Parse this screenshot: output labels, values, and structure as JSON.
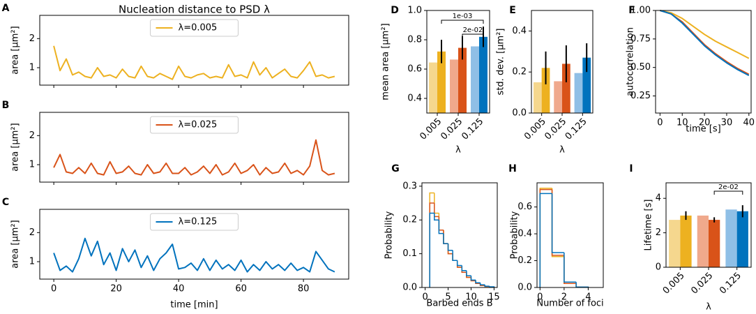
{
  "chart_data": [
    {
      "type": "line",
      "panel": "A",
      "title": "Nucleation distance to PSD λ",
      "ylabel": "area [μm²]",
      "legend": "upper center",
      "x": [
        0,
        2,
        4,
        6,
        8,
        10,
        12,
        14,
        16,
        18,
        20,
        22,
        24,
        26,
        28,
        30,
        32,
        34,
        36,
        38,
        40,
        42,
        44,
        46,
        48,
        50,
        52,
        54,
        56,
        58,
        60,
        62,
        64,
        66,
        68,
        70,
        72,
        74,
        76,
        78,
        80,
        82,
        84,
        86,
        88,
        90
      ],
      "series": [
        {
          "name": "λ=0.005",
          "color": "#edb120",
          "values": [
            1.75,
            0.9,
            1.3,
            0.75,
            0.85,
            0.7,
            0.65,
            1.0,
            0.7,
            0.75,
            0.65,
            0.95,
            0.7,
            0.65,
            1.05,
            0.7,
            0.65,
            0.8,
            0.7,
            0.6,
            1.05,
            0.7,
            0.65,
            0.75,
            0.8,
            0.65,
            0.7,
            0.65,
            1.1,
            0.7,
            0.75,
            0.65,
            1.2,
            0.75,
            1.0,
            0.65,
            0.8,
            0.95,
            0.7,
            0.65,
            0.9,
            1.2,
            0.7,
            0.75,
            0.65,
            0.7
          ]
        }
      ],
      "xlim": [
        -4.5,
        94.5
      ],
      "ylim": [
        0.4,
        2.8
      ],
      "xticks": [
        0,
        20,
        40,
        60,
        80
      ],
      "xticklabels": false,
      "yticks": [
        1,
        2
      ]
    },
    {
      "type": "line",
      "panel": "B",
      "ylabel": "area [μm²]",
      "legend": "upper center",
      "x": [
        0,
        2,
        4,
        6,
        8,
        10,
        12,
        14,
        16,
        18,
        20,
        22,
        24,
        26,
        28,
        30,
        32,
        34,
        36,
        38,
        40,
        42,
        44,
        46,
        48,
        50,
        52,
        54,
        56,
        58,
        60,
        62,
        64,
        66,
        68,
        70,
        72,
        74,
        76,
        78,
        80,
        82,
        84,
        86,
        88,
        90
      ],
      "series": [
        {
          "name": "λ=0.025",
          "color": "#d95319",
          "values": [
            0.9,
            1.35,
            0.75,
            0.7,
            0.9,
            0.7,
            1.05,
            0.7,
            0.65,
            1.1,
            0.7,
            0.75,
            0.95,
            0.7,
            0.65,
            1.0,
            0.7,
            0.75,
            1.05,
            0.7,
            0.7,
            0.9,
            0.65,
            0.75,
            0.95,
            0.7,
            1.0,
            0.65,
            0.75,
            1.05,
            0.7,
            0.8,
            1.0,
            0.65,
            0.9,
            0.7,
            0.75,
            1.05,
            0.7,
            0.8,
            0.65,
            0.95,
            1.85,
            0.8,
            0.65,
            0.7
          ]
        }
      ],
      "xlim": [
        -4.5,
        94.5
      ],
      "ylim": [
        0.4,
        2.8
      ],
      "xticks": [
        0,
        20,
        40,
        60,
        80
      ],
      "xticklabels": false,
      "yticks": [
        1,
        2
      ]
    },
    {
      "type": "line",
      "panel": "C",
      "ylabel": "area [μm²]",
      "xlabel": "time [min]",
      "legend": "upper center",
      "x": [
        0,
        2,
        4,
        6,
        8,
        10,
        12,
        14,
        16,
        18,
        20,
        22,
        24,
        26,
        28,
        30,
        32,
        34,
        36,
        38,
        40,
        42,
        44,
        46,
        48,
        50,
        52,
        54,
        56,
        58,
        60,
        62,
        64,
        66,
        68,
        70,
        72,
        74,
        76,
        78,
        80,
        82,
        84,
        86,
        88,
        90
      ],
      "series": [
        {
          "name": "λ=0.125",
          "color": "#0072bd",
          "values": [
            1.3,
            0.7,
            0.85,
            0.65,
            1.1,
            1.8,
            1.2,
            1.7,
            0.9,
            1.3,
            0.7,
            1.45,
            1.0,
            1.4,
            0.8,
            1.2,
            0.7,
            1.1,
            1.3,
            1.6,
            0.75,
            0.8,
            0.95,
            0.7,
            1.1,
            0.7,
            1.05,
            0.75,
            0.9,
            0.7,
            1.05,
            0.65,
            0.9,
            0.7,
            1.0,
            0.75,
            0.9,
            0.7,
            0.95,
            0.7,
            0.8,
            0.65,
            1.35,
            1.05,
            0.75,
            0.65
          ]
        }
      ],
      "xlim": [
        -4.5,
        94.5
      ],
      "ylim": [
        0.4,
        2.8
      ],
      "xticks": [
        0,
        20,
        40,
        60,
        80
      ],
      "yticks": [
        1,
        2
      ]
    },
    {
      "type": "bar",
      "panel": "D",
      "ylabel": "mean area [μm²]",
      "xlabel": "λ",
      "categories": [
        "0.005",
        "0.025",
        "0.125"
      ],
      "series": [
        {
          "colors": [
            "#f5d78e",
            "#f0a98c",
            "#8fbfe6"
          ],
          "values": [
            0.645,
            0.665,
            0.755
          ]
        },
        {
          "colors": [
            "#edb120",
            "#d95319",
            "#0072bd"
          ],
          "values": [
            0.72,
            0.745,
            0.82
          ],
          "errors": [
            0.08,
            0.08,
            0.07
          ]
        }
      ],
      "annotations": [
        "1e-03",
        "2e-02"
      ],
      "ylim": [
        0.3,
        1.0
      ],
      "yticks": [
        0.4,
        0.6,
        0.8,
        {
          "value": 1,
          "label": "1.0"
        }
      ]
    },
    {
      "type": "bar",
      "panel": "E",
      "ylabel": "std. dev. [μm²]",
      "xlabel": "λ",
      "categories": [
        "0.005",
        "0.025",
        "0.125"
      ],
      "series": [
        {
          "colors": [
            "#f5d78e",
            "#f0a98c",
            "#8fbfe6"
          ],
          "values": [
            0.15,
            0.155,
            0.195
          ]
        },
        {
          "colors": [
            "#edb120",
            "#d95319",
            "#0072bd"
          ],
          "values": [
            0.22,
            0.24,
            0.27
          ],
          "errors": [
            0.08,
            0.09,
            0.07
          ]
        }
      ],
      "ylim": [
        0,
        0.5
      ],
      "yticks": [
        {
          "value": 0,
          "label": "0.0"
        },
        0.2,
        0.4
      ]
    },
    {
      "type": "line",
      "panel": "F",
      "ylabel": "autocorrelation",
      "xlabel": "time [s]",
      "x": [
        0,
        5,
        10,
        15,
        20,
        25,
        30,
        35,
        40
      ],
      "series": [
        {
          "color": "#edb120",
          "values": [
            1.0,
            0.98,
            0.93,
            0.86,
            0.79,
            0.73,
            0.68,
            0.63,
            0.58
          ]
        },
        {
          "color": "#d95319",
          "values": [
            1.0,
            0.97,
            0.9,
            0.8,
            0.7,
            0.62,
            0.55,
            0.49,
            0.44
          ]
        },
        {
          "color": "#0072bd",
          "values": [
            1.0,
            0.97,
            0.89,
            0.79,
            0.69,
            0.61,
            0.54,
            0.48,
            0.43
          ]
        }
      ],
      "xlim": [
        -2,
        41
      ],
      "ylim": [
        0.1,
        1.0
      ],
      "xticks": [
        0,
        10,
        20,
        30,
        40
      ],
      "yticks": [
        0.25,
        {
          "value": 0.5,
          "label": "0.50"
        },
        0.75,
        {
          "value": 1,
          "label": "1.00"
        }
      ]
    },
    {
      "type": "histogram",
      "panel": "G",
      "ylabel": "Probability",
      "xlabel": "Barbed ends B",
      "bins": [
        1,
        2,
        3,
        4,
        5,
        6,
        7,
        8,
        9,
        10,
        11,
        12,
        13,
        14,
        15
      ],
      "series": [
        {
          "color": "#edb120",
          "values": [
            0.28,
            0.22,
            0.17,
            0.13,
            0.1,
            0.08,
            0.06,
            0.045,
            0.03,
            0.02,
            0.012,
            0.006,
            0.003,
            0.001
          ]
        },
        {
          "color": "#d95319",
          "values": [
            0.25,
            0.21,
            0.17,
            0.13,
            0.1,
            0.08,
            0.06,
            0.045,
            0.03,
            0.02,
            0.012,
            0.006,
            0.003,
            0.001
          ]
        },
        {
          "color": "#0072bd",
          "values": [
            0.22,
            0.2,
            0.16,
            0.13,
            0.11,
            0.08,
            0.065,
            0.05,
            0.035,
            0.022,
            0.014,
            0.008,
            0.004,
            0.002
          ]
        }
      ],
      "xlim": [
        -0.7,
        15.7
      ],
      "ylim": [
        0,
        0.31
      ],
      "xticks": [
        0,
        5,
        10,
        15
      ],
      "yticks": [
        {
          "value": 0,
          "label": "0.0"
        },
        0.1,
        0.2,
        0.3
      ]
    },
    {
      "type": "histogram",
      "panel": "H",
      "ylabel": "Probability",
      "xlabel": "Number of foci",
      "bins": [
        0,
        1,
        2,
        3,
        4
      ],
      "series": [
        {
          "color": "#edb120",
          "values": [
            0.74,
            0.23,
            0.03,
            0.002
          ]
        },
        {
          "color": "#d95319",
          "values": [
            0.73,
            0.24,
            0.03,
            0.002
          ]
        },
        {
          "color": "#0072bd",
          "values": [
            0.7,
            0.26,
            0.04,
            0.003
          ]
        }
      ],
      "xlim": [
        -0.25,
        5.25
      ],
      "ylim": [
        0,
        0.78
      ],
      "xticks": [
        0,
        2,
        4
      ],
      "yticks": [
        {
          "value": 0,
          "label": "0.0"
        },
        0.2,
        0.4,
        0.6
      ]
    },
    {
      "type": "bar",
      "panel": "I",
      "ylabel": "Lifetime [s]",
      "xlabel": "λ",
      "categories": [
        "0.005",
        "0.025",
        "0.125"
      ],
      "series": [
        {
          "colors": [
            "#f5d78e",
            "#f0a98c",
            "#8fbfe6"
          ],
          "values": [
            2.75,
            3.0,
            3.35
          ]
        },
        {
          "colors": [
            "#edb120",
            "#d95319",
            "#0072bd"
          ],
          "values": [
            3.0,
            2.75,
            3.25
          ],
          "errors": [
            0.25,
            0.15,
            0.35
          ]
        }
      ],
      "annotations": [
        "2e-02"
      ],
      "ylim": [
        0,
        4.9
      ],
      "yticks": [
        0,
        2,
        4
      ]
    }
  ]
}
